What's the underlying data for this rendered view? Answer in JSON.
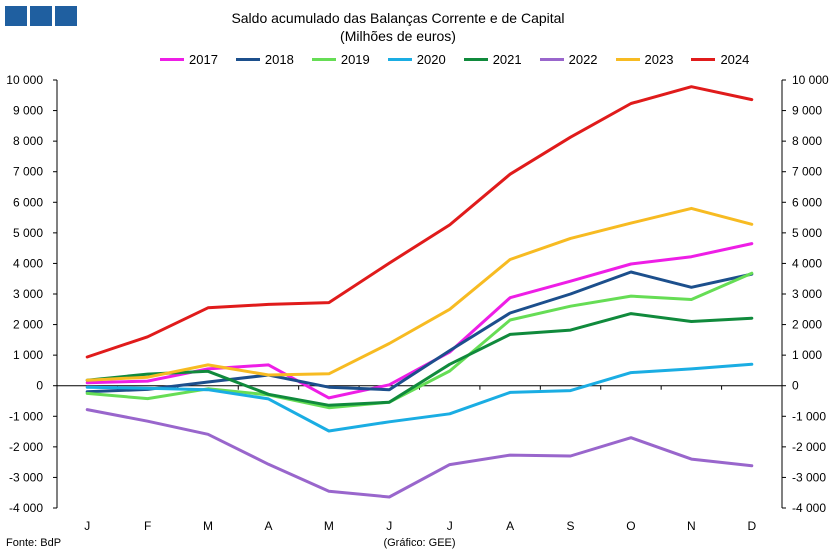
{
  "logo": {
    "color": "#1f5fa0"
  },
  "title": {
    "line1": "Saldo acumulado  das Balanças Corrente e de Capital",
    "line2": "(Milhões de euros)"
  },
  "footer": {
    "source": "Fonte: BdP",
    "note": "(Gráfico: GEE)"
  },
  "chart_data": {
    "type": "line",
    "categories": [
      "J",
      "F",
      "M",
      "A",
      "M",
      "J",
      "J",
      "A",
      "S",
      "O",
      "N",
      "D"
    ],
    "ylim": [
      -4000,
      10000
    ],
    "yticks": [
      -4000,
      -3000,
      -2000,
      -1000,
      0,
      1000,
      2000,
      3000,
      4000,
      5000,
      6000,
      7000,
      8000,
      9000,
      10000
    ],
    "ytick_labels": [
      "-4 000",
      "-3 000",
      "-2 000",
      "-1 000",
      "0",
      "1 000",
      "2 000",
      "3 000",
      "4 000",
      "5 000",
      "6 000",
      "7 000",
      "8 000",
      "9 000",
      "10 000"
    ],
    "grid": false,
    "legend": "top",
    "series": [
      {
        "name": "2017",
        "color": "#ee1ee6",
        "values": [
          100,
          150,
          550,
          680,
          -400,
          30,
          1100,
          2880,
          3420,
          3980,
          4220,
          4650
        ]
      },
      {
        "name": "2018",
        "color": "#1c4f8c",
        "values": [
          -200,
          -120,
          120,
          350,
          -50,
          -130,
          1150,
          2380,
          3000,
          3720,
          3220,
          3650
        ]
      },
      {
        "name": "2019",
        "color": "#66dd55",
        "values": [
          -250,
          -420,
          -100,
          -300,
          -720,
          -540,
          480,
          2150,
          2600,
          2930,
          2820,
          3680
        ]
      },
      {
        "name": "2020",
        "color": "#1aade3",
        "values": [
          -50,
          -80,
          -130,
          -430,
          -1480,
          -1180,
          -920,
          -220,
          -160,
          430,
          550,
          700
        ]
      },
      {
        "name": "2021",
        "color": "#108a3c",
        "values": [
          180,
          380,
          470,
          -280,
          -640,
          -540,
          700,
          1680,
          1820,
          2360,
          2100,
          2210
        ]
      },
      {
        "name": "2022",
        "color": "#9966cc",
        "values": [
          -780,
          -1160,
          -1590,
          -2570,
          -3450,
          -3640,
          -2580,
          -2270,
          -2300,
          -1700,
          -2400,
          -2620
        ]
      },
      {
        "name": "2023",
        "color": "#f7bb22",
        "values": [
          180,
          280,
          680,
          350,
          390,
          1380,
          2500,
          4130,
          4820,
          5320,
          5800,
          5280
        ]
      },
      {
        "name": "2024",
        "color": "#e01b1b",
        "values": [
          940,
          1600,
          2550,
          2660,
          2720,
          4010,
          5260,
          6920,
          8130,
          9230,
          9780,
          9360
        ]
      }
    ]
  }
}
